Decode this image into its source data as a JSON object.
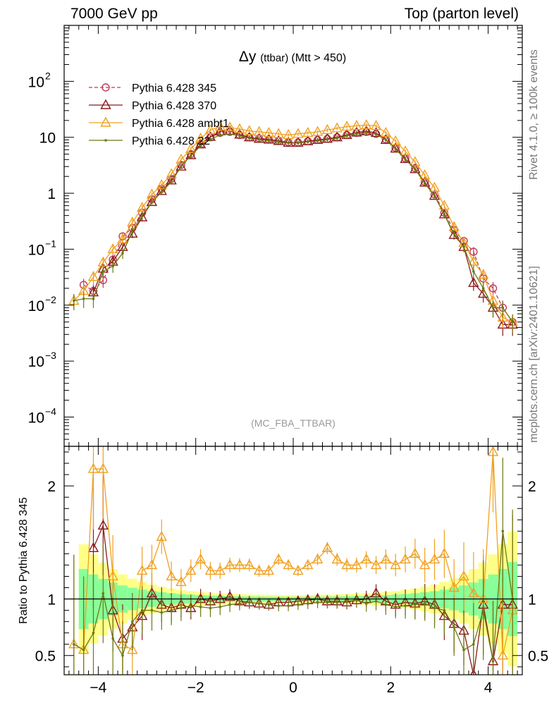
{
  "header": {
    "left": "7000 GeV pp",
    "right": "Top (parton level)"
  },
  "side_labels": {
    "rivet": "Rivet 4.1.0, ≥ 100k events",
    "mcplots": "mcplots.cern.ch [arXiv:2401.10621]"
  },
  "chart_data": {
    "type": "line",
    "title_symbol": "Δy",
    "title_small": "(ttbar)",
    "title_rest": "(Mtt > 450)",
    "watermark": "(MC_FBA_TTBAR)",
    "xlim": [
      -4.7,
      4.7
    ],
    "ylim_main": [
      3e-05,
      1000
    ],
    "ylim_ratio": [
      0.33,
      2.35
    ],
    "ratio_ylabel": "Ratio to Pythia 6.428 345",
    "x_ticks": [
      -4,
      -2,
      0,
      2,
      4
    ],
    "x_tick_labels": [
      "−4",
      "−2",
      "0",
      "2",
      "4"
    ],
    "main_ticks": [
      0.0001,
      0.001,
      0.01,
      0.1,
      1,
      10,
      100
    ],
    "main_tick_labels": [
      {
        "base": "10",
        "exp": "−4"
      },
      {
        "base": "10",
        "exp": "−3"
      },
      {
        "base": "10",
        "exp": "−2"
      },
      {
        "base": "10",
        "exp": "−1"
      },
      {
        "base": "1",
        "exp": ""
      },
      {
        "base": "10",
        "exp": ""
      },
      {
        "base": "10",
        "exp": "2"
      }
    ],
    "ratio_ticks": [
      0.5,
      1,
      2
    ],
    "ratio_tick_labels": [
      "0.5",
      "1",
      "2"
    ],
    "series": [
      {
        "name": "Pythia 6.428 345",
        "color": "#c03a5a",
        "dash": true,
        "marker": "circle",
        "x": [
          -4.3,
          -4.1,
          -3.9,
          -3.7,
          -3.5,
          -3.3,
          -3.1,
          -2.9,
          -2.7,
          -2.5,
          -2.3,
          -2.1,
          -1.9,
          -1.7,
          -1.5,
          -1.3,
          -1.1,
          -0.9,
          -0.7,
          -0.5,
          -0.3,
          -0.1,
          0.1,
          0.3,
          0.5,
          0.7,
          0.9,
          1.1,
          1.3,
          1.5,
          1.7,
          1.9,
          2.1,
          2.3,
          2.5,
          2.7,
          2.9,
          3.1,
          3.3,
          3.5,
          3.7,
          3.9,
          4.1,
          4.3,
          4.5
        ],
        "values": [
          0.023,
          0.018,
          0.028,
          0.065,
          0.17,
          0.24,
          0.45,
          0.78,
          1.2,
          1.8,
          3.2,
          5.0,
          7.5,
          10.0,
          12.0,
          12.5,
          11.0,
          10.0,
          9.6,
          9.2,
          8.7,
          8.2,
          8.1,
          8.5,
          9.0,
          9.4,
          10.0,
          11.0,
          12.0,
          12.5,
          11.5,
          9.2,
          6.5,
          4.2,
          2.8,
          1.6,
          0.95,
          0.45,
          0.22,
          0.14,
          0.09,
          0.03,
          0.02,
          0.009,
          0.005
        ]
      },
      {
        "name": "Pythia 6.428 370",
        "color": "#8b1a1a",
        "dash": false,
        "marker": "triangle",
        "x": [
          -4.1,
          -3.9,
          -3.7,
          -3.5,
          -3.3,
          -3.1,
          -2.9,
          -2.7,
          -2.5,
          -2.3,
          -2.1,
          -1.9,
          -1.7,
          -1.5,
          -1.3,
          -1.1,
          -0.9,
          -0.7,
          -0.5,
          -0.3,
          -0.1,
          0.1,
          0.3,
          0.5,
          0.7,
          0.9,
          1.1,
          1.3,
          1.5,
          1.7,
          1.9,
          2.1,
          2.3,
          2.5,
          2.7,
          2.9,
          3.1,
          3.3,
          3.5,
          3.7,
          3.9,
          4.1,
          4.3,
          4.5
        ],
        "values": [
          0.017,
          0.045,
          0.06,
          0.11,
          0.19,
          0.37,
          0.7,
          1.1,
          1.7,
          3.0,
          4.8,
          7.5,
          10.2,
          12.8,
          13.0,
          11.2,
          10.0,
          9.4,
          9.1,
          8.6,
          8.0,
          8.0,
          8.5,
          9.0,
          9.4,
          10.0,
          11.0,
          12.2,
          12.8,
          12.0,
          9.0,
          6.3,
          4.1,
          2.7,
          1.55,
          0.9,
          0.42,
          0.18,
          0.11,
          0.025,
          0.016,
          0.009,
          0.0045,
          0.0045
        ]
      },
      {
        "name": "Pythia 6.428 ambt1",
        "color": "#f0a020",
        "dash": false,
        "marker": "triangle",
        "x": [
          -4.5,
          -4.3,
          -4.1,
          -3.9,
          -3.7,
          -3.5,
          -3.3,
          -3.1,
          -2.9,
          -2.7,
          -2.5,
          -2.3,
          -2.1,
          -1.9,
          -1.7,
          -1.5,
          -1.3,
          -1.1,
          -0.9,
          -0.7,
          -0.5,
          -0.3,
          -0.1,
          0.1,
          0.3,
          0.5,
          0.7,
          0.9,
          1.1,
          1.3,
          1.5,
          1.7,
          1.9,
          2.1,
          2.3,
          2.5,
          2.7,
          2.9,
          3.1,
          3.3,
          3.5,
          3.7,
          3.9,
          4.1,
          4.3,
          4.5
        ],
        "values": [
          0.012,
          0.018,
          0.032,
          0.058,
          0.1,
          0.15,
          0.3,
          0.55,
          0.95,
          1.4,
          2.2,
          4.0,
          6.2,
          9.5,
          13.5,
          15.5,
          15.0,
          14.0,
          13.0,
          12.5,
          12.0,
          11.5,
          11.0,
          11.5,
          12.0,
          12.5,
          13.5,
          14.5,
          15.5,
          16.0,
          16.5,
          16.0,
          12.0,
          8.5,
          5.6,
          3.6,
          2.1,
          1.25,
          0.6,
          0.25,
          0.13,
          0.06,
          0.035,
          0.012,
          0.006,
          0.005
        ]
      },
      {
        "name": "Pythia 6.428 22",
        "color": "#6b7a10",
        "dash": false,
        "marker": "dot",
        "x": [
          -4.5,
          -4.3,
          -4.1,
          -3.9,
          -3.7,
          -3.5,
          -3.3,
          -3.1,
          -2.9,
          -2.7,
          -2.5,
          -2.3,
          -2.1,
          -1.9,
          -1.7,
          -1.5,
          -1.3,
          -1.1,
          -0.9,
          -0.7,
          -0.5,
          -0.3,
          -0.1,
          0.1,
          0.3,
          0.5,
          0.7,
          0.9,
          1.1,
          1.3,
          1.5,
          1.7,
          1.9,
          2.1,
          2.3,
          2.5,
          2.7,
          2.9,
          3.1,
          3.3,
          3.5,
          3.7,
          3.9,
          4.1,
          4.3,
          4.5
        ],
        "values": [
          0.012,
          0.013,
          0.013,
          0.04,
          0.05,
          0.085,
          0.21,
          0.4,
          0.7,
          1.05,
          1.6,
          3.0,
          4.7,
          7.0,
          9.2,
          11.0,
          11.5,
          10.6,
          9.6,
          9.1,
          8.7,
          8.2,
          7.9,
          7.9,
          8.3,
          8.6,
          9.1,
          9.6,
          10.6,
          11.4,
          12.0,
          11.4,
          9.0,
          6.2,
          4.0,
          2.7,
          1.5,
          0.9,
          0.42,
          0.19,
          0.11,
          0.04,
          0.02,
          0.009,
          0.009,
          0.005
        ]
      }
    ],
    "ratio_series": [
      {
        "name": "Pythia 6.428 370",
        "x": [
          -4.1,
          -3.9,
          -3.7,
          -3.5,
          -3.3,
          -3.1,
          -2.9,
          -2.7,
          -2.5,
          -2.3,
          -2.1,
          -1.9,
          -1.7,
          -1.5,
          -1.3,
          -1.1,
          -0.9,
          -0.7,
          -0.5,
          -0.3,
          -0.1,
          0.1,
          0.3,
          0.5,
          0.7,
          0.9,
          1.1,
          1.3,
          1.5,
          1.7,
          1.9,
          2.1,
          2.3,
          2.5,
          2.7,
          2.9,
          3.1,
          3.3,
          3.5,
          3.7,
          3.9,
          4.1,
          4.3,
          4.5
        ],
        "values": [
          1.45,
          1.65,
          0.9,
          0.65,
          0.75,
          0.85,
          1.05,
          0.95,
          0.92,
          0.95,
          0.92,
          1.0,
          0.98,
          1.0,
          1.02,
          0.98,
          0.97,
          0.96,
          0.95,
          0.97,
          0.97,
          0.98,
          0.99,
          1.0,
          0.98,
          0.98,
          0.97,
          0.99,
          1.0,
          1.05,
          0.98,
          0.95,
          0.97,
          0.96,
          0.98,
          0.95,
          0.85,
          0.78,
          0.72,
          0.32,
          0.95,
          0.45,
          0.95,
          0.95
        ]
      },
      {
        "name": "Pythia 6.428 ambt1",
        "x": [
          -4.5,
          -4.3,
          -4.1,
          -3.9,
          -3.7,
          -3.5,
          -3.3,
          -3.1,
          -2.9,
          -2.7,
          -2.5,
          -2.3,
          -2.1,
          -1.9,
          -1.7,
          -1.5,
          -1.3,
          -1.1,
          -0.9,
          -0.7,
          -0.5,
          -0.3,
          -0.1,
          0.1,
          0.3,
          0.5,
          0.7,
          0.9,
          1.1,
          1.3,
          1.5,
          1.7,
          1.9,
          2.1,
          2.3,
          2.5,
          2.7,
          2.9,
          3.1,
          3.3,
          3.5,
          3.7,
          3.9,
          4.1,
          4.3,
          4.5
        ],
        "values": [
          0.6,
          0.55,
          2.15,
          2.15,
          1.2,
          0.6,
          0.55,
          1.25,
          1.3,
          1.55,
          1.2,
          1.15,
          1.25,
          1.35,
          1.25,
          1.25,
          1.3,
          1.3,
          1.3,
          1.25,
          1.25,
          1.35,
          1.3,
          1.25,
          1.3,
          1.35,
          1.45,
          1.35,
          1.3,
          1.3,
          1.35,
          1.3,
          1.35,
          1.3,
          1.35,
          1.4,
          1.3,
          1.35,
          1.4,
          1.1,
          1.2,
          1.05,
          1.0,
          2.3,
          0.5,
          0.9
        ]
      },
      {
        "name": "Pythia 6.428 22",
        "x": [
          -4.5,
          -4.3,
          -4.1,
          -3.9,
          -3.7,
          -3.5,
          -3.3,
          -3.1,
          -2.9,
          -2.7,
          -2.5,
          -2.3,
          -2.1,
          -1.9,
          -1.7,
          -1.5,
          -1.3,
          -1.1,
          -0.9,
          -0.7,
          -0.5,
          -0.3,
          -0.1,
          0.1,
          0.3,
          0.5,
          0.7,
          0.9,
          1.1,
          1.3,
          1.5,
          1.7,
          1.9,
          2.1,
          2.3,
          2.5,
          2.7,
          2.9,
          3.1,
          3.3,
          3.5,
          3.7,
          3.9,
          4.1,
          4.3,
          4.5
        ],
        "values": [
          0.6,
          0.55,
          0.7,
          1.05,
          0.65,
          0.5,
          0.8,
          0.9,
          0.9,
          0.88,
          0.9,
          0.92,
          0.94,
          0.93,
          0.92,
          0.93,
          0.95,
          0.96,
          0.97,
          0.96,
          0.95,
          0.94,
          0.94,
          0.95,
          0.96,
          0.97,
          0.97,
          0.97,
          0.98,
          0.99,
          0.96,
          0.98,
          0.95,
          0.93,
          0.94,
          0.95,
          0.96,
          0.92,
          0.9,
          0.75,
          0.55,
          0.6,
          0.9,
          0.45,
          1.6,
          1.0
        ]
      }
    ]
  }
}
